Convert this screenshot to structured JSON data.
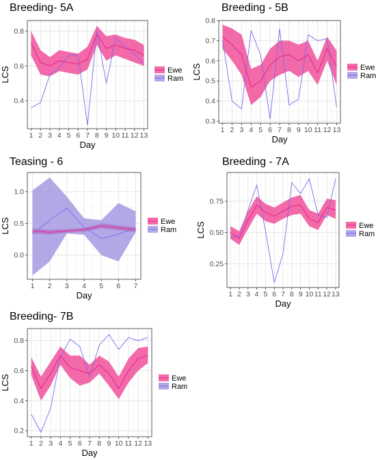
{
  "colors": {
    "ewe_line": "#e7298a",
    "ewe_ribbon": "#f0509a",
    "ram_line": "#7b68ee",
    "ram_ribbon": "#9a8cdf"
  },
  "chart_data": [
    {
      "type": "line",
      "title": "Breeding- 5A",
      "xlabel": "Day",
      "ylabel": "LCS",
      "x": [
        1,
        2,
        3,
        4,
        5,
        6,
        7,
        8,
        9,
        10,
        11,
        12,
        13
      ],
      "xlim": [
        0.6,
        13.4
      ],
      "ylim": [
        0.24,
        0.86
      ],
      "yticks": [
        0.4,
        0.6,
        0.8
      ],
      "yticklabels": [
        "0.4",
        "0.6",
        "0.8"
      ],
      "grid": true,
      "legend": {
        "position": "right",
        "entries": [
          "Ewe",
          "Ram"
        ]
      },
      "series": [
        {
          "name": "Ewe",
          "values": [
            0.73,
            0.62,
            0.6,
            0.63,
            0.62,
            0.61,
            0.64,
            0.78,
            0.7,
            0.72,
            0.7,
            0.69,
            0.66
          ],
          "lower": [
            0.66,
            0.55,
            0.54,
            0.57,
            0.56,
            0.55,
            0.58,
            0.72,
            0.63,
            0.66,
            0.64,
            0.62,
            0.6
          ],
          "upper": [
            0.8,
            0.69,
            0.65,
            0.69,
            0.68,
            0.67,
            0.71,
            0.83,
            0.77,
            0.78,
            0.76,
            0.75,
            0.72
          ]
        },
        {
          "name": "Ram",
          "values": [
            0.36,
            0.39,
            0.55,
            0.59,
            0.66,
            0.66,
            0.26,
            0.8,
            0.5,
            0.76,
            0.71,
            0.67,
            0.61
          ]
        }
      ]
    },
    {
      "type": "line",
      "title": "Breeding - 5B",
      "xlabel": "Day",
      "ylabel": "LCS",
      "x": [
        1,
        2,
        3,
        4,
        5,
        6,
        7,
        8,
        9,
        10,
        11,
        12,
        13
      ],
      "xlim": [
        0.6,
        13.4
      ],
      "ylim": [
        0.29,
        0.8
      ],
      "yticks": [
        0.3,
        0.4,
        0.5,
        0.6,
        0.7,
        0.8
      ],
      "yticklabels": [
        "0.3",
        "0.4",
        "0.5",
        "0.6",
        "0.7",
        "0.8"
      ],
      "grid": true,
      "legend": {
        "position": "right",
        "entries": [
          "Ewe",
          "Ram"
        ]
      },
      "series": [
        {
          "name": "Ewe",
          "values": [
            0.72,
            0.68,
            0.63,
            0.47,
            0.5,
            0.58,
            0.62,
            0.63,
            0.6,
            0.63,
            0.54,
            0.66,
            0.57
          ],
          "lower": [
            0.66,
            0.6,
            0.53,
            0.38,
            0.42,
            0.5,
            0.53,
            0.55,
            0.52,
            0.55,
            0.48,
            0.6,
            0.48
          ],
          "upper": [
            0.78,
            0.76,
            0.73,
            0.56,
            0.58,
            0.66,
            0.7,
            0.7,
            0.68,
            0.7,
            0.6,
            0.72,
            0.65
          ]
        },
        {
          "name": "Ram",
          "values": [
            0.7,
            0.4,
            0.36,
            0.75,
            0.63,
            0.31,
            0.76,
            0.38,
            0.41,
            0.73,
            0.7,
            0.71,
            0.37
          ]
        }
      ]
    },
    {
      "type": "line",
      "title": "Teasing - 6",
      "xlabel": "Day",
      "ylabel": "LCS",
      "x": [
        1,
        2,
        3,
        4,
        5,
        6,
        7
      ],
      "xlim": [
        0.7,
        7.3
      ],
      "ylim": [
        -0.38,
        1.3
      ],
      "yticks": [
        0.0,
        0.5,
        1.0
      ],
      "yticklabels": [
        "0.0",
        "0.5",
        "1.0"
      ],
      "grid": true,
      "legend": {
        "position": "right",
        "entries": [
          "Ewe",
          "Ram"
        ]
      },
      "series": [
        {
          "name": "Ewe",
          "values": [
            0.38,
            0.36,
            0.38,
            0.4,
            0.46,
            0.43,
            0.4
          ],
          "lower": [
            0.34,
            0.32,
            0.35,
            0.37,
            0.42,
            0.39,
            0.36
          ],
          "upper": [
            0.42,
            0.4,
            0.41,
            0.43,
            0.5,
            0.47,
            0.44
          ]
        },
        {
          "name": "Ram",
          "values": [
            0.33,
            0.55,
            0.74,
            0.44,
            0.26,
            0.33,
            0.43
          ],
          "lower": [
            -0.32,
            -0.1,
            0.34,
            0.32,
            0.0,
            -0.1,
            0.36
          ],
          "upper": [
            1.02,
            1.22,
            0.92,
            0.58,
            0.55,
            0.82,
            0.69
          ]
        }
      ]
    },
    {
      "type": "line",
      "title": "Breeding - 7A",
      "xlabel": "Day",
      "ylabel": "LCS",
      "x": [
        1,
        2,
        3,
        4,
        5,
        6,
        7,
        8,
        9,
        10,
        11,
        12,
        13
      ],
      "xlim": [
        0.6,
        13.4
      ],
      "ylim": [
        0.06,
        0.98
      ],
      "yticks": [
        0.25,
        0.5,
        0.75
      ],
      "yticklabels": [
        "0.25",
        "0.50",
        "0.75"
      ],
      "grid": true,
      "legend": {
        "position": "right",
        "entries": [
          "Ewe",
          "Ram"
        ]
      },
      "series": [
        {
          "name": "Ewe",
          "values": [
            0.5,
            0.45,
            0.6,
            0.72,
            0.66,
            0.63,
            0.67,
            0.71,
            0.72,
            0.61,
            0.58,
            0.7,
            0.68
          ],
          "lower": [
            0.45,
            0.4,
            0.53,
            0.65,
            0.59,
            0.57,
            0.61,
            0.64,
            0.65,
            0.55,
            0.52,
            0.64,
            0.61
          ],
          "upper": [
            0.55,
            0.51,
            0.67,
            0.79,
            0.73,
            0.7,
            0.74,
            0.78,
            0.8,
            0.68,
            0.65,
            0.77,
            0.76
          ]
        },
        {
          "name": "Ram",
          "values": [
            0.46,
            0.47,
            0.68,
            0.88,
            0.51,
            0.1,
            0.33,
            0.9,
            0.81,
            0.93,
            0.64,
            0.62,
            0.93
          ]
        }
      ]
    },
    {
      "type": "line",
      "title": "Breeding- 7B",
      "xlabel": "Day",
      "ylabel": "LCS",
      "x": [
        1,
        2,
        3,
        4,
        5,
        6,
        7,
        8,
        9,
        10,
        11,
        12,
        13
      ],
      "xlim": [
        0.6,
        13.4
      ],
      "ylim": [
        0.16,
        0.88
      ],
      "yticks": [
        0.2,
        0.4,
        0.6,
        0.8
      ],
      "yticklabels": [
        "0.2",
        "0.4",
        "0.6",
        "0.8"
      ],
      "grid": true,
      "legend": {
        "position": "right",
        "entries": [
          "Ewe",
          "Ram"
        ]
      },
      "series": [
        {
          "name": "Ewe",
          "values": [
            0.63,
            0.48,
            0.58,
            0.7,
            0.62,
            0.6,
            0.58,
            0.64,
            0.58,
            0.48,
            0.6,
            0.68,
            0.7
          ],
          "lower": [
            0.57,
            0.4,
            0.5,
            0.64,
            0.55,
            0.5,
            0.52,
            0.58,
            0.5,
            0.41,
            0.52,
            0.6,
            0.65
          ],
          "upper": [
            0.69,
            0.56,
            0.66,
            0.76,
            0.7,
            0.7,
            0.64,
            0.7,
            0.66,
            0.56,
            0.68,
            0.75,
            0.76
          ]
        },
        {
          "name": "Ram",
          "values": [
            0.31,
            0.19,
            0.35,
            0.69,
            0.81,
            0.76,
            0.56,
            0.77,
            0.84,
            0.74,
            0.82,
            0.8,
            0.82
          ]
        }
      ]
    }
  ]
}
